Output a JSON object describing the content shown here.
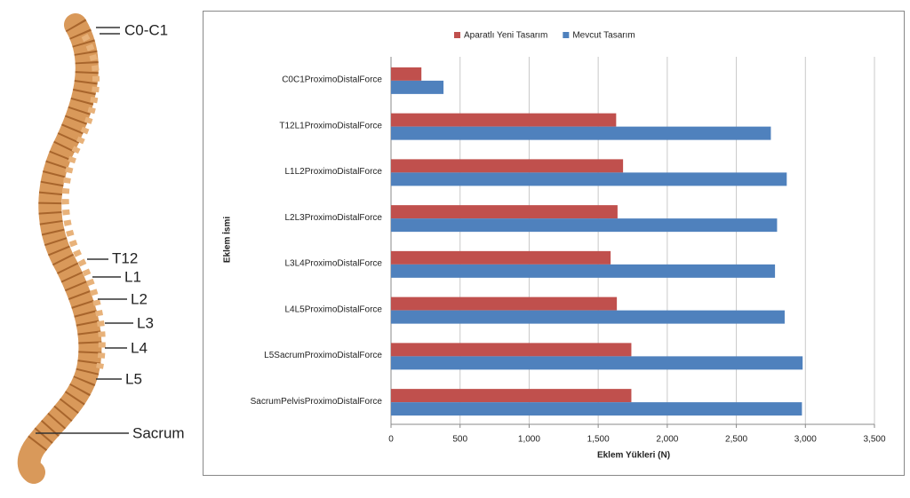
{
  "illustration": {
    "labels": [
      "C0-C1",
      "T12",
      "L1",
      "L2",
      "L3",
      "L4",
      "L5",
      "Sacrum"
    ]
  },
  "chart_data": {
    "type": "bar",
    "orientation": "horizontal",
    "xlabel": "Eklem Yükleri (N)",
    "ylabel": "Eklem İsmi",
    "categories": [
      "C0C1ProximoDistalForce",
      "T12L1ProximoDistalForce",
      "L1L2ProximoDistalForce",
      "L2L3ProximoDistalForce",
      "L3L4ProximoDistalForce",
      "L4L5ProximoDistalForce",
      "L5SacrumProximoDistalForce",
      "SacrumPelvisProximoDistalForce"
    ],
    "series": [
      {
        "name": "Aparatlı Yeni Tasarım",
        "color": "#c0504d",
        "values": [
          220,
          1630,
          1680,
          1640,
          1590,
          1635,
          1740,
          1740
        ]
      },
      {
        "name": "Mevcut Tasarım",
        "color": "#4f81bd",
        "values": [
          380,
          2750,
          2865,
          2795,
          2780,
          2850,
          2980,
          2975
        ]
      }
    ],
    "xlim": [
      0,
      3500
    ],
    "xticks": [
      0,
      500,
      {
        "value": 1000,
        "label": "1,000"
      },
      {
        "value": 1500,
        "label": "1,500"
      },
      {
        "value": 2000,
        "label": "2,000"
      },
      {
        "value": 2500,
        "label": "2,500"
      },
      {
        "value": 3000,
        "label": "3,000"
      },
      {
        "value": 3500,
        "label": "3,500"
      }
    ],
    "grid": true,
    "legend": "top"
  }
}
